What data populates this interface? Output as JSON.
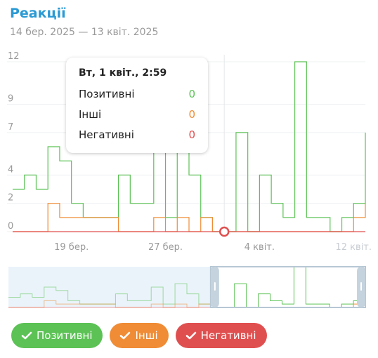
{
  "title": "Реакції",
  "subtitle": "14 бер. 2025 — 13 квіт. 2025",
  "tooltip": {
    "date": "Вт, 1 квіт., 2:59",
    "rows": [
      {
        "label": "Позитивні",
        "value": "0"
      },
      {
        "label": "Інші",
        "value": "0"
      },
      {
        "label": "Негативні",
        "value": "0"
      }
    ]
  },
  "colors": {
    "positive": "#5cc255",
    "other": "#ef8c35",
    "negative": "#e04f4f",
    "title": "#2a9ad4"
  },
  "buttons": [
    {
      "label": "Позитивні",
      "color": "#5cc255",
      "icon": "checkmark-icon"
    },
    {
      "label": "Інші",
      "color": "#ef8c35",
      "icon": "checkmark-icon"
    },
    {
      "label": "Негативні",
      "color": "#e04f4f",
      "icon": "checkmark-icon"
    }
  ],
  "chart_data": {
    "type": "line",
    "step": true,
    "x_ticks": [
      "19 бер.",
      "27 бер.",
      "4 квіт.",
      "12 квіт."
    ],
    "y_ticks": [
      "0",
      "2",
      "4",
      "7",
      "9",
      "12"
    ],
    "ylim": [
      0,
      12
    ],
    "grid": true,
    "x": [
      "2025-03-14",
      "2025-03-15",
      "2025-03-16",
      "2025-03-17",
      "2025-03-18",
      "2025-03-19",
      "2025-03-20",
      "2025-03-21",
      "2025-03-22",
      "2025-03-23",
      "2025-03-24",
      "2025-03-25",
      "2025-03-26",
      "2025-03-27",
      "2025-03-28",
      "2025-03-29",
      "2025-03-30",
      "2025-03-31",
      "2025-04-01",
      "2025-04-02",
      "2025-04-03",
      "2025-04-04",
      "2025-04-05",
      "2025-04-06",
      "2025-04-07",
      "2025-04-08",
      "2025-04-09",
      "2025-04-10",
      "2025-04-11",
      "2025-04-12",
      "2025-04-13"
    ],
    "series": [
      {
        "name": "Позитивні",
        "color": "#5cc255",
        "values": [
          3,
          4,
          3,
          6,
          5,
          2,
          1,
          1,
          1,
          4,
          2,
          2,
          6,
          1,
          7,
          4,
          1,
          0,
          0,
          7,
          0,
          4,
          2,
          1,
          12,
          1,
          1,
          0,
          1,
          2,
          7
        ]
      },
      {
        "name": "Інші",
        "color": "#ef8c35",
        "values": [
          0,
          0,
          0,
          2,
          1,
          1,
          1,
          1,
          1,
          0,
          0,
          0,
          1,
          0,
          1,
          0,
          1,
          0,
          0,
          0,
          0,
          0,
          0,
          0,
          0,
          0,
          0,
          0,
          0,
          1,
          2
        ]
      },
      {
        "name": "Негативні",
        "color": "#e04f4f",
        "values": [
          0,
          0,
          0,
          0,
          0,
          0,
          0,
          0,
          0,
          0,
          0,
          0,
          0,
          0,
          0,
          0,
          0,
          0,
          0,
          0,
          0,
          0,
          0,
          0,
          0,
          0,
          0,
          0,
          0,
          0,
          0
        ]
      }
    ],
    "hover_index": 18,
    "range_selector": {
      "start": "2025-03-31",
      "end": "2025-04-13"
    }
  }
}
